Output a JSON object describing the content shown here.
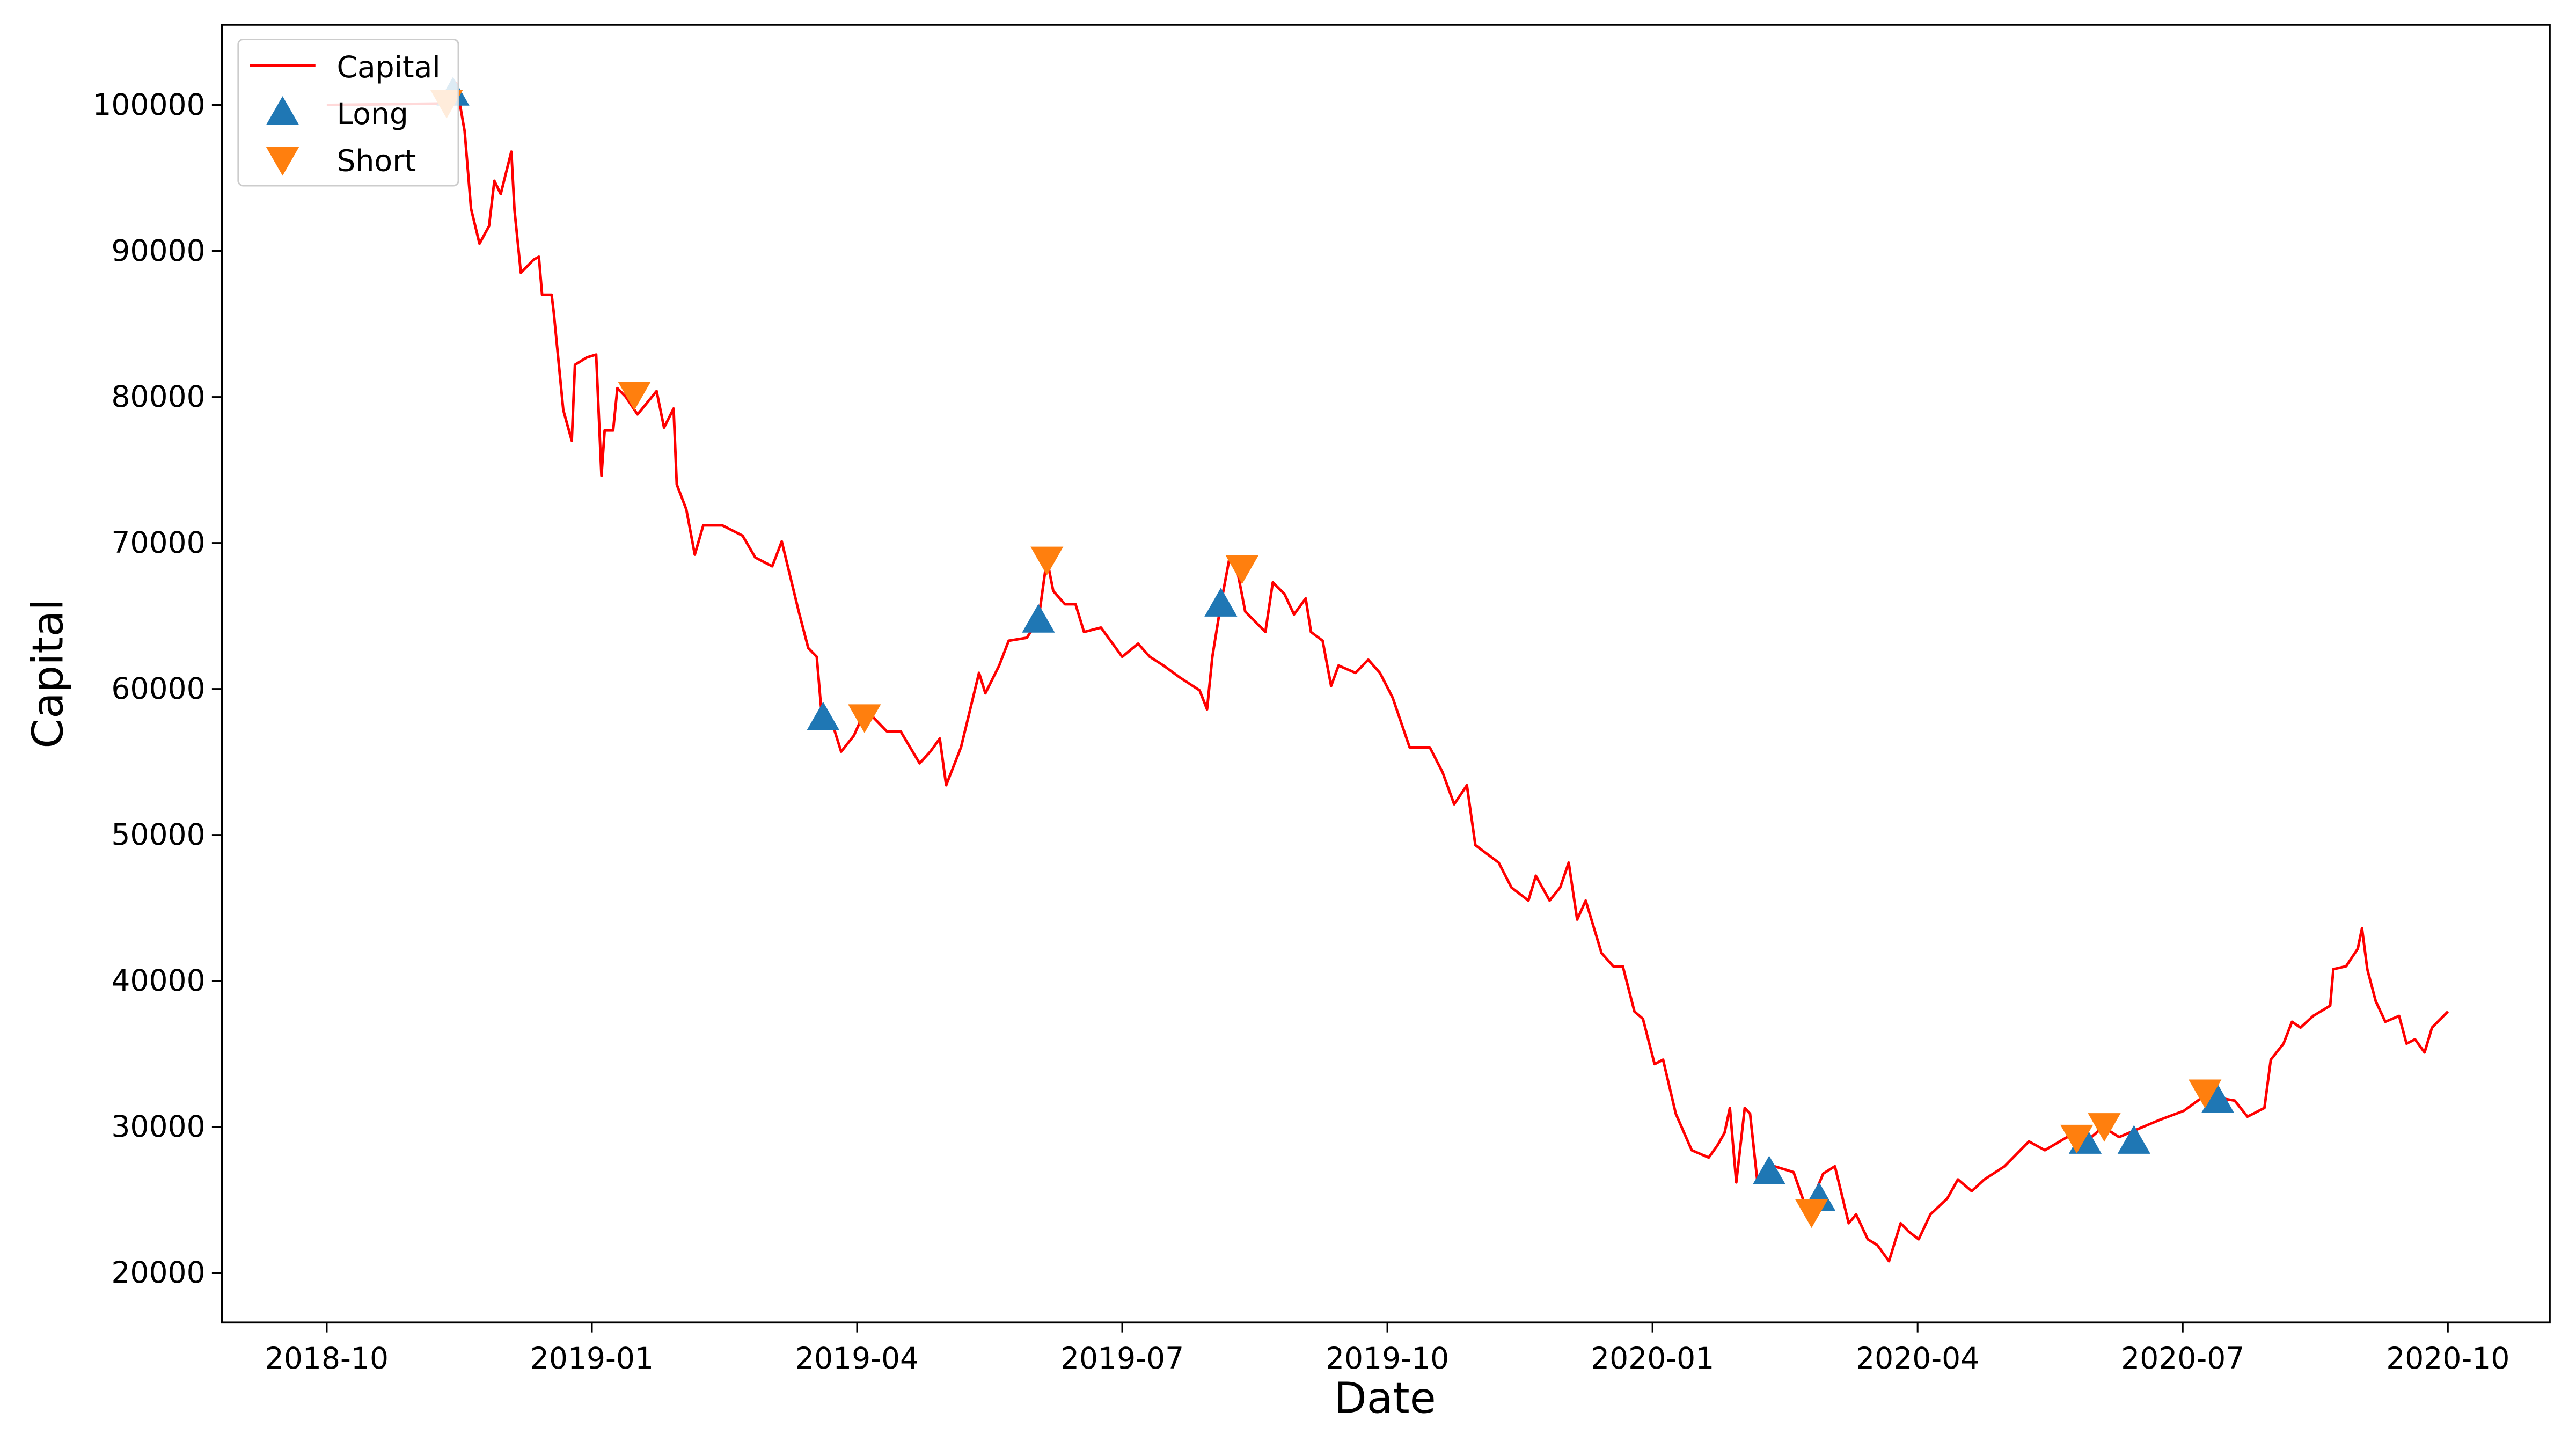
{
  "chart_data": {
    "type": "line",
    "x_label": "Date",
    "y_label": "Capital",
    "xlim": [
      2018.651,
      2020.846
    ],
    "ylim": [
      16600,
      105500
    ],
    "xticks": [
      {
        "value": 2018.75,
        "label": "2018-10"
      },
      {
        "value": 2019.0,
        "label": "2019-01"
      },
      {
        "value": 2019.25,
        "label": "2019-04"
      },
      {
        "value": 2019.5,
        "label": "2019-07"
      },
      {
        "value": 2019.75,
        "label": "2019-10"
      },
      {
        "value": 2020.0,
        "label": "2020-01"
      },
      {
        "value": 2020.25,
        "label": "2020-04"
      },
      {
        "value": 2020.5,
        "label": "2020-07"
      },
      {
        "value": 2020.75,
        "label": "2020-10"
      }
    ],
    "yticks": [
      20000,
      30000,
      40000,
      50000,
      60000,
      70000,
      80000,
      90000,
      100000
    ],
    "grid": false,
    "legend": "upper-left",
    "series": [
      {
        "name": "Capital",
        "color": "#ff0000",
        "mark": "line",
        "x": [
          2018.75,
          2018.86,
          2018.872,
          2018.88,
          2018.886,
          2018.894,
          2018.903,
          2018.908,
          2018.914,
          2018.924,
          2018.927,
          2018.933,
          2018.945,
          2018.95,
          2018.953,
          2018.962,
          2018.964,
          2018.973,
          2018.981,
          2018.984,
          2018.995,
          2019.004,
          2019.009,
          2019.012,
          2019.02,
          2019.024,
          2019.032,
          2019.043,
          2019.061,
          2019.068,
          2019.077,
          2019.08,
          2019.089,
          2019.097,
          2019.105,
          2019.123,
          2019.142,
          2019.154,
          2019.17,
          2019.179,
          2019.195,
          2019.204,
          2019.212,
          2019.216,
          2019.229,
          2019.235,
          2019.247,
          2019.258,
          2019.278,
          2019.291,
          2019.309,
          2019.319,
          2019.328,
          2019.334,
          2019.348,
          2019.365,
          2019.371,
          2019.384,
          2019.393,
          2019.41,
          2019.421,
          2019.429,
          2019.435,
          2019.446,
          2019.456,
          2019.464,
          2019.48,
          2019.5,
          2019.515,
          2019.526,
          2019.539,
          2019.554,
          2019.573,
          2019.58,
          2019.585,
          2019.593,
          2019.601,
          2019.608,
          2019.616,
          2019.635,
          2019.642,
          2019.653,
          2019.662,
          2019.673,
          2019.678,
          2019.689,
          2019.697,
          2019.704,
          2019.72,
          2019.732,
          2019.743,
          2019.755,
          2019.771,
          2019.79,
          2019.802,
          2019.813,
          2019.825,
          2019.833,
          2019.844,
          2019.855,
          2019.867,
          2019.883,
          2019.89,
          2019.903,
          2019.913,
          2019.921,
          2019.929,
          2019.937,
          2019.952,
          2019.963,
          2019.972,
          2019.983,
          2019.991,
          2020.002,
          2020.01,
          2020.022,
          2020.037,
          2020.053,
          2020.061,
          2020.068,
          2020.073,
          2020.079,
          2020.087,
          2020.092,
          2020.099,
          2020.115,
          2020.133,
          2020.146,
          2020.161,
          2020.172,
          2020.185,
          2020.192,
          2020.203,
          2020.212,
          2020.223,
          2020.234,
          2020.242,
          2020.251,
          2020.262,
          2020.278,
          2020.288,
          2020.301,
          2020.313,
          2020.332,
          2020.355,
          2020.37,
          2020.391,
          2020.409,
          2020.425,
          2020.44,
          2020.456,
          2020.479,
          2020.501,
          2020.518,
          2020.533,
          2020.549,
          2020.561,
          2020.577,
          2020.583,
          2020.595,
          2020.603,
          2020.611,
          2020.623,
          2020.639,
          2020.642,
          2020.654,
          2020.665,
          2020.669,
          2020.674,
          2020.682,
          2020.691,
          2020.704,
          2020.711,
          2020.719,
          2020.728,
          2020.735,
          2020.75
        ],
        "values": [
          100000,
          100100,
          101500,
          98200,
          92900,
          90500,
          91700,
          94800,
          93900,
          96800,
          92800,
          88500,
          89400,
          89600,
          87000,
          87000,
          85800,
          79100,
          77000,
          82200,
          82700,
          82900,
          74600,
          77700,
          77700,
          80600,
          80000,
          78800,
          80400,
          77900,
          79200,
          74000,
          72300,
          69200,
          71200,
          71200,
          70500,
          69000,
          68400,
          70100,
          65300,
          62800,
          62200,
          58800,
          57100,
          55700,
          56800,
          58600,
          57100,
          57100,
          54900,
          55700,
          56600,
          53400,
          56000,
          61100,
          59700,
          61600,
          63300,
          63500,
          64700,
          68900,
          66700,
          65800,
          65800,
          63900,
          64200,
          62200,
          63100,
          62200,
          61600,
          60800,
          59900,
          58600,
          62200,
          65800,
          68900,
          68300,
          65300,
          63900,
          67300,
          66500,
          65100,
          66200,
          63900,
          63300,
          60200,
          61600,
          61100,
          62000,
          61100,
          59400,
          56000,
          56000,
          54300,
          52100,
          53400,
          49300,
          48700,
          48100,
          46400,
          45500,
          47200,
          45500,
          46400,
          48100,
          44200,
          45500,
          41900,
          41000,
          41000,
          37900,
          37400,
          34300,
          34600,
          30900,
          28400,
          27900,
          28700,
          29600,
          31300,
          26200,
          31300,
          30900,
          26200,
          27300,
          26900,
          24200,
          26800,
          27300,
          23400,
          24000,
          22300,
          21900,
          20800,
          23400,
          22800,
          22300,
          24000,
          25100,
          26400,
          25600,
          26400,
          27300,
          29000,
          28400,
          29300,
          29000,
          30000,
          29300,
          29800,
          30500,
          31100,
          32000,
          32000,
          31800,
          30700,
          31300,
          34600,
          35700,
          37200,
          36800,
          37600,
          38300,
          40800,
          41000,
          42200,
          43600,
          40800,
          38600,
          37200,
          37600,
          35700,
          36000,
          35100,
          36800,
          37900
        ]
      },
      {
        "name": "Long",
        "color": "#1f77b4",
        "mark": "triangle-up",
        "x": [
          2018.869,
          2019.218,
          2019.421,
          2019.593,
          2020.11,
          2020.157,
          2020.408,
          2020.454,
          2020.533
        ],
        "values": [
          100800,
          58000,
          64700,
          65800,
          26900,
          25100,
          29000,
          29000,
          31800
        ]
      },
      {
        "name": "Short",
        "color": "#ff7f0e",
        "mark": "triangle-down",
        "x": [
          2018.863,
          2019.04,
          2019.257,
          2019.429,
          2019.613,
          2020.15,
          2020.4,
          2020.426,
          2020.521
        ],
        "values": [
          100200,
          80200,
          58100,
          68900,
          68300,
          24200,
          29300,
          30100,
          32400
        ]
      }
    ]
  }
}
